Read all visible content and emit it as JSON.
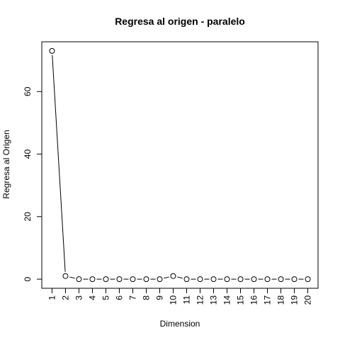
{
  "chart_data": {
    "type": "line",
    "title": "Regresa al origen - paralelo",
    "xlabel": "Dimension",
    "ylabel": "Regresa al Origen",
    "x": [
      1,
      2,
      3,
      4,
      5,
      6,
      7,
      8,
      9,
      10,
      11,
      12,
      13,
      14,
      15,
      16,
      17,
      18,
      19,
      20
    ],
    "x_tick_labels": [
      "1",
      "2",
      "3",
      "4",
      "5",
      "6",
      "7",
      "8",
      "9",
      "10",
      "11",
      "12",
      "13",
      "14",
      "15",
      "16",
      "17",
      "18",
      "19",
      "20"
    ],
    "y_ticks": [
      0,
      20,
      40,
      60
    ],
    "y_tick_labels": [
      "0",
      "20",
      "40",
      "60"
    ],
    "series": [
      {
        "values": [
          73,
          1,
          0,
          0,
          0,
          0,
          0,
          0,
          0,
          1,
          0,
          0,
          0,
          0,
          0,
          0,
          0,
          0,
          0,
          0
        ]
      }
    ],
    "xlim": [
      0.24,
      20.76
    ],
    "ylim": [
      -2.92,
      75.92
    ],
    "marker": "open-circle",
    "grid": false,
    "legend": "none"
  }
}
